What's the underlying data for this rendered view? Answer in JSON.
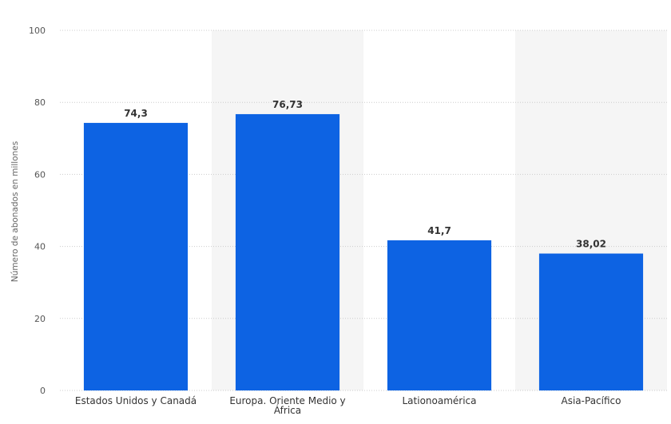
{
  "chart_data": {
    "type": "bar",
    "title": "",
    "xlabel": "",
    "ylabel": "Número de abonados en millones",
    "categories": [
      "Estados Unidos y Canadá",
      "Europa. Oriente Medio y África",
      "Lationoamérica",
      "Asia-Pacífico"
    ],
    "category_lines": [
      [
        "Estados Unidos y Canadá"
      ],
      [
        "Europa. Oriente Medio y",
        "África"
      ],
      [
        "Lationoamérica"
      ],
      [
        "Asia-Pacífico"
      ]
    ],
    "values": [
      74.3,
      76.73,
      41.7,
      38.02
    ],
    "value_labels": [
      "74,3",
      "76,73",
      "41,7",
      "38,02"
    ],
    "ylim": [
      0,
      100
    ],
    "yticks": [
      0,
      20,
      40,
      60,
      80,
      100
    ],
    "grid": true,
    "legend": "none",
    "colors": {
      "bar": "#0d63e3",
      "band": "#f5f5f5",
      "grid": "#cccccc"
    }
  }
}
